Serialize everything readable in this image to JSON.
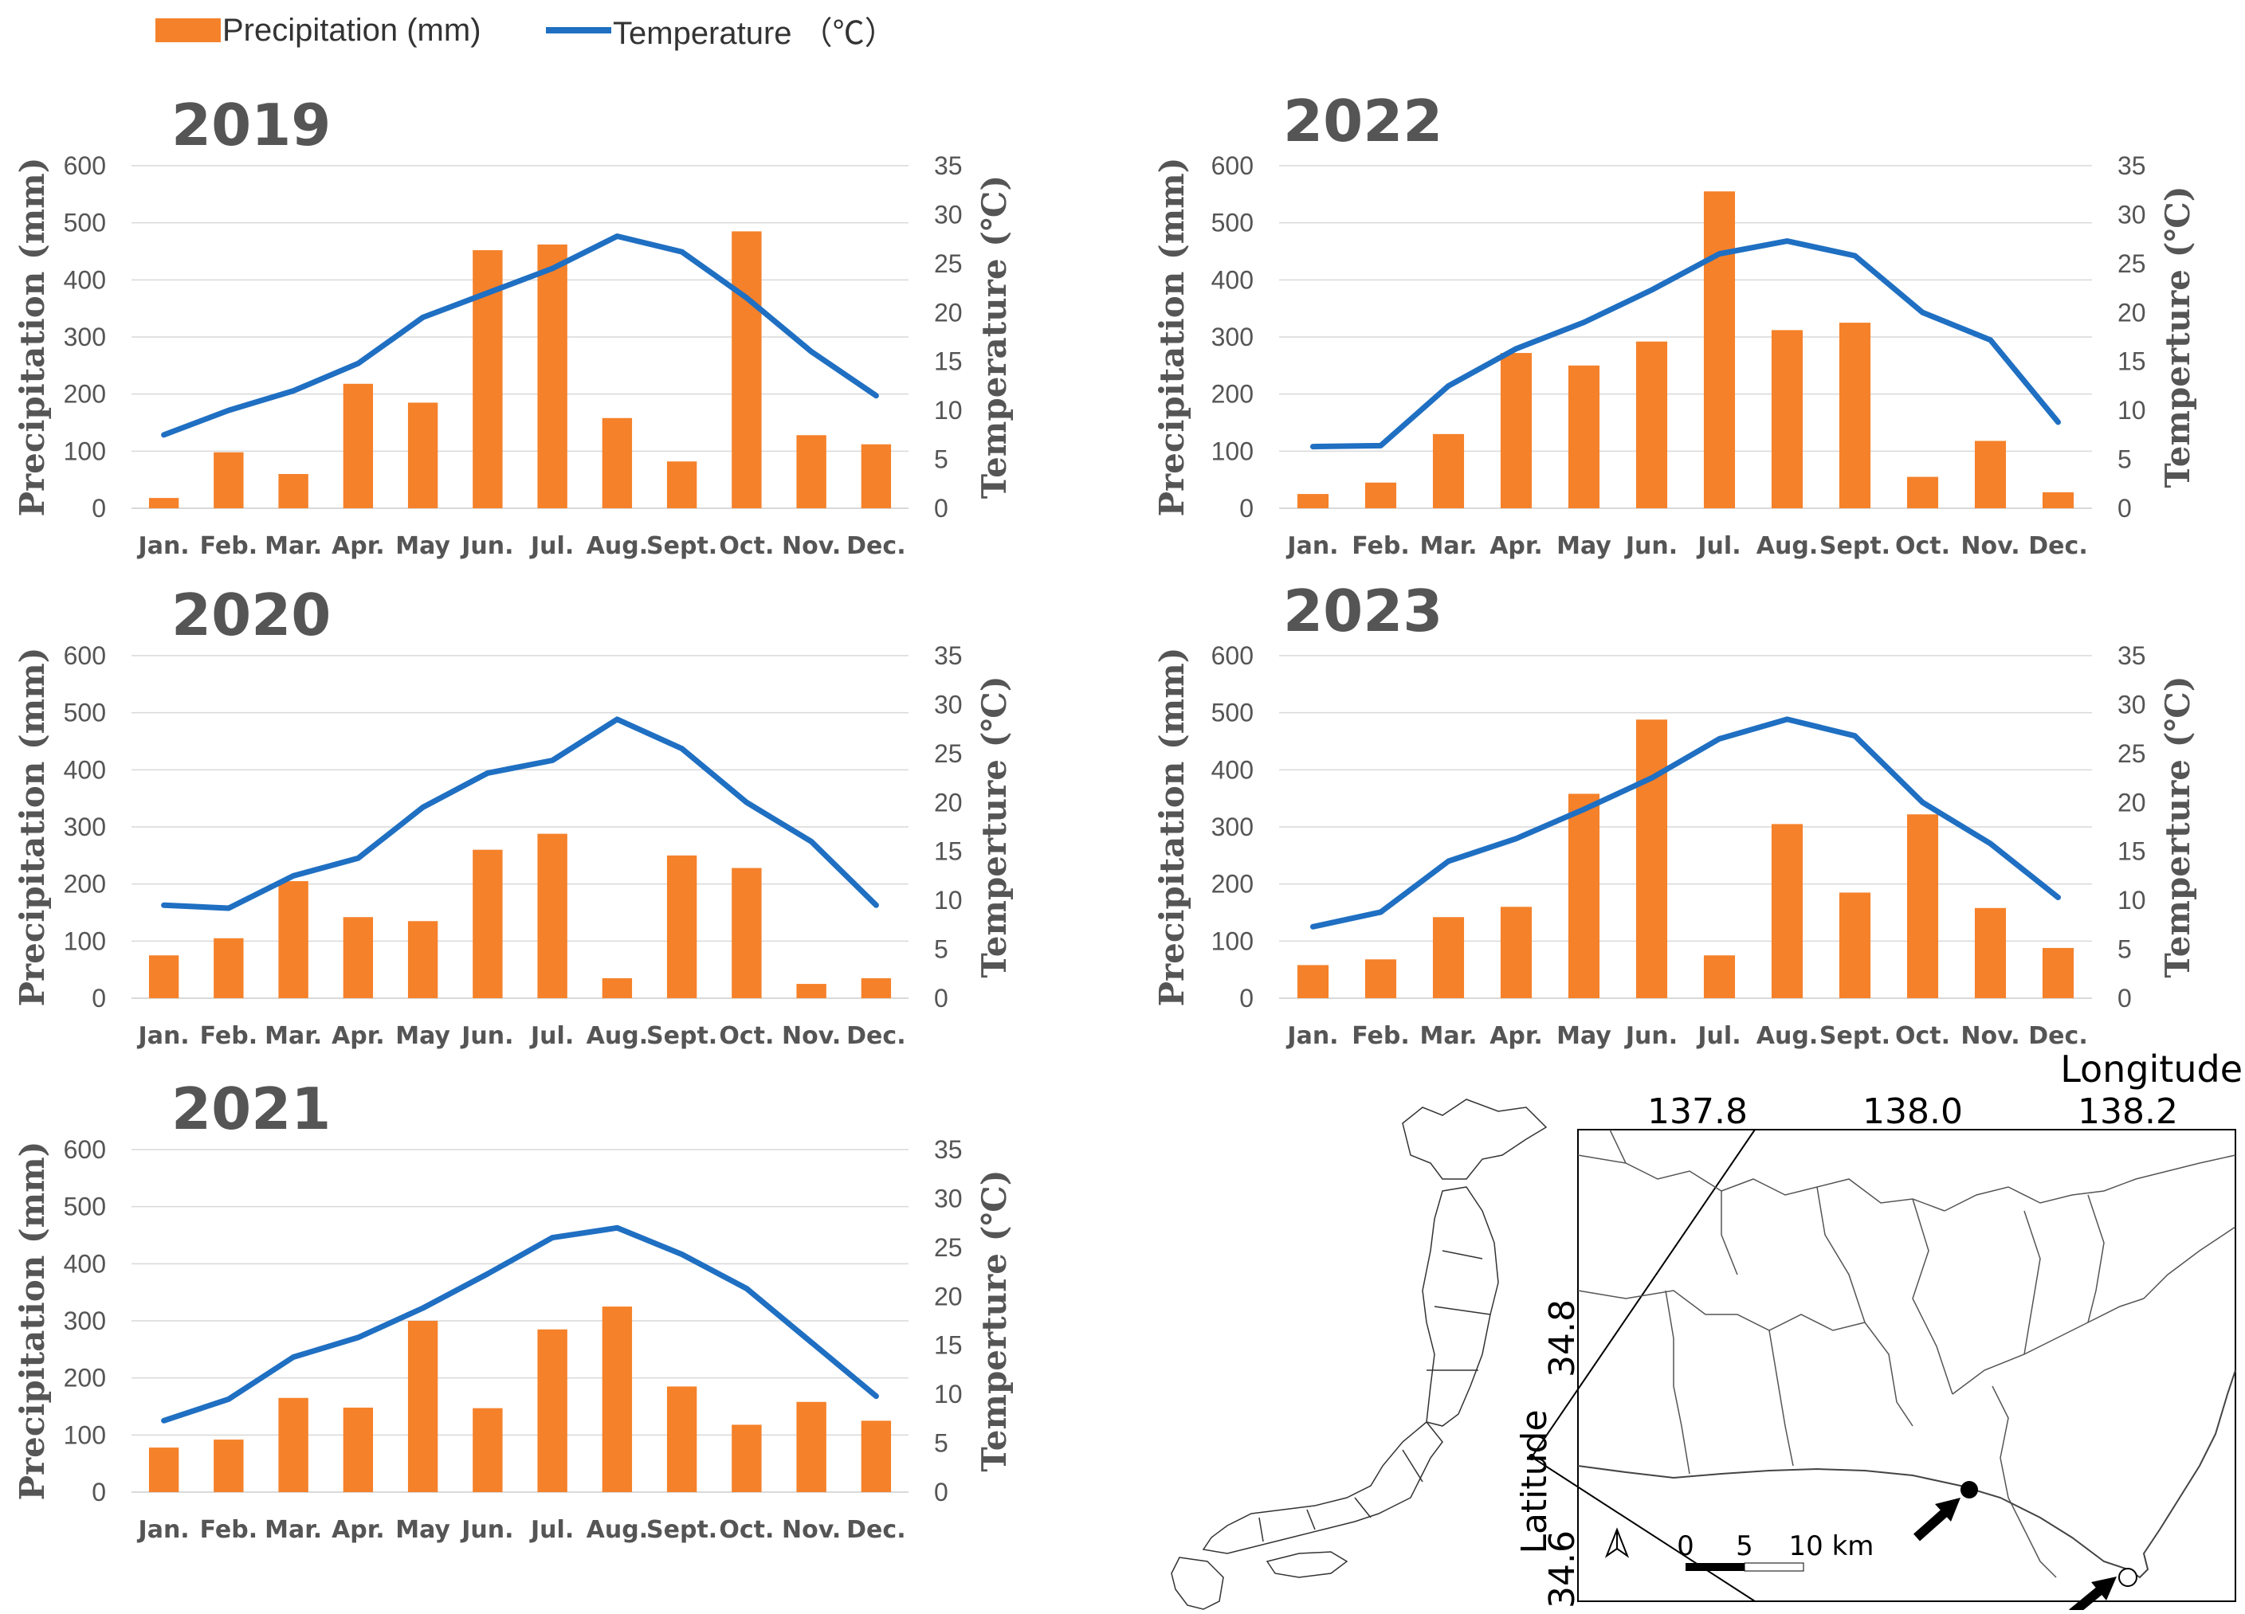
{
  "legend": {
    "precipitation_label": "Precipitation (mm)",
    "temperature_label": "Temperature （℃）"
  },
  "colors": {
    "bar": "#F5812A",
    "line": "#1F6FC2",
    "grid": "#D9D9D9",
    "text": "#555555"
  },
  "chart_data": [
    {
      "type": "bar+line",
      "title": "2019",
      "categories": [
        "Jan.",
        "Feb.",
        "Mar.",
        "Apr.",
        "May",
        "Jun.",
        "Jul.",
        "Aug.",
        "Sept.",
        "Oct.",
        "Nov.",
        "Dec."
      ],
      "series": [
        {
          "name": "Precipitation (mm)",
          "type": "bar",
          "axis": "left",
          "values": [
            18,
            98,
            60,
            218,
            185,
            452,
            462,
            158,
            82,
            485,
            128,
            112
          ]
        },
        {
          "name": "Temperature",
          "type": "line",
          "axis": "right",
          "values": [
            7.5,
            10.0,
            12.0,
            14.8,
            19.5,
            22.0,
            24.5,
            27.8,
            26.2,
            21.5,
            16.0,
            11.5
          ]
        }
      ],
      "ylabel": "Precipitation (mm)",
      "y2label": "Temperature (℃)",
      "ylim": [
        0,
        600
      ],
      "y2lim": [
        0,
        35
      ],
      "yticks": [
        "0",
        "100",
        "200",
        "300",
        "400",
        "500",
        "600"
      ],
      "y2ticks": [
        "0",
        "5",
        "10",
        "15",
        "20",
        "25",
        "30",
        "35"
      ],
      "grid": true
    },
    {
      "type": "bar+line",
      "title": "2020",
      "categories": [
        "Jan.",
        "Feb.",
        "Mar.",
        "Apr.",
        "May",
        "Jun.",
        "Jul.",
        "Aug.",
        "Sept.",
        "Oct.",
        "Nov.",
        "Dec."
      ],
      "series": [
        {
          "name": "Precipitation (mm)",
          "type": "bar",
          "axis": "left",
          "values": [
            75,
            105,
            205,
            142,
            135,
            260,
            288,
            35,
            250,
            228,
            25,
            35
          ]
        },
        {
          "name": "Temperature",
          "type": "line",
          "axis": "right",
          "values": [
            9.5,
            9.2,
            12.5,
            14.3,
            19.5,
            23.0,
            24.3,
            28.5,
            25.5,
            20.0,
            16.0,
            9.5
          ]
        }
      ],
      "ylabel": "Precipitation (mm)",
      "y2label": "Temperture (℃)",
      "ylim": [
        0,
        600
      ],
      "y2lim": [
        0,
        35
      ],
      "yticks": [
        "0",
        "100",
        "200",
        "300",
        "400",
        "500",
        "600"
      ],
      "y2ticks": [
        "0",
        "5",
        "10",
        "15",
        "20",
        "25",
        "30",
        "35"
      ],
      "grid": true
    },
    {
      "type": "bar+line",
      "title": "2021",
      "categories": [
        "Jan.",
        "Feb.",
        "Mar.",
        "Apr.",
        "May",
        "Jun.",
        "Jul.",
        "Aug.",
        "Sept.",
        "Oct.",
        "Nov.",
        "Dec."
      ],
      "series": [
        {
          "name": "Precipitation (mm)",
          "type": "bar",
          "axis": "left",
          "values": [
            78,
            92,
            165,
            148,
            300,
            147,
            285,
            325,
            185,
            118,
            158,
            125
          ]
        },
        {
          "name": "Temperature",
          "type": "line",
          "axis": "right",
          "values": [
            7.3,
            9.5,
            13.8,
            15.8,
            18.8,
            22.3,
            26.0,
            27.0,
            24.3,
            20.8,
            15.3,
            9.8
          ]
        }
      ],
      "ylabel": "Precipitation (mm)",
      "y2label": "Temperture (℃)",
      "ylim": [
        0,
        600
      ],
      "y2lim": [
        0,
        35
      ],
      "yticks": [
        "0",
        "100",
        "200",
        "300",
        "400",
        "500",
        "600"
      ],
      "y2ticks": [
        "0",
        "5",
        "10",
        "15",
        "20",
        "25",
        "30",
        "35"
      ],
      "grid": true
    },
    {
      "type": "bar+line",
      "title": "2022",
      "categories": [
        "Jan.",
        "Feb.",
        "Mar.",
        "Apr.",
        "May",
        "Jun.",
        "Jul.",
        "Aug.",
        "Sept.",
        "Oct.",
        "Nov.",
        "Dec."
      ],
      "series": [
        {
          "name": "Precipitation (mm)",
          "type": "bar",
          "axis": "left",
          "values": [
            25,
            45,
            130,
            272,
            250,
            292,
            555,
            312,
            325,
            55,
            118,
            28
          ]
        },
        {
          "name": "Temperature",
          "type": "line",
          "axis": "right",
          "values": [
            6.3,
            6.4,
            12.5,
            16.3,
            19.0,
            22.3,
            26.0,
            27.3,
            25.8,
            20.0,
            17.2,
            8.8
          ]
        }
      ],
      "ylabel": "Precipitation (mm)",
      "y2label": "Temperture (℃)",
      "ylim": [
        0,
        600
      ],
      "y2lim": [
        0,
        35
      ],
      "yticks": [
        "0",
        "100",
        "200",
        "300",
        "400",
        "500",
        "600"
      ],
      "y2ticks": [
        "0",
        "5",
        "10",
        "15",
        "20",
        "25",
        "30",
        "35"
      ],
      "grid": true
    },
    {
      "type": "bar+line",
      "title": "2023",
      "categories": [
        "Jan.",
        "Feb.",
        "Mar.",
        "Apr.",
        "May",
        "Jun.",
        "Jul.",
        "Aug.",
        "Sept.",
        "Oct.",
        "Nov.",
        "Dec."
      ],
      "series": [
        {
          "name": "Precipitation (mm)",
          "type": "bar",
          "axis": "left",
          "values": [
            58,
            68,
            142,
            160,
            358,
            488,
            75,
            305,
            185,
            322,
            158,
            88
          ]
        },
        {
          "name": "Temperature",
          "type": "line",
          "axis": "right",
          "values": [
            7.3,
            8.8,
            14.0,
            16.3,
            19.3,
            22.5,
            26.5,
            28.5,
            26.8,
            20.0,
            15.8,
            10.3
          ]
        }
      ],
      "ylabel": "Precipitation (mm)",
      "y2label": "Temperture (℃)",
      "ylim": [
        0,
        600
      ],
      "y2lim": [
        0,
        35
      ],
      "yticks": [
        "0",
        "100",
        "200",
        "300",
        "400",
        "500",
        "600"
      ],
      "y2ticks": [
        "0",
        "5",
        "10",
        "15",
        "20",
        "25",
        "30",
        "35"
      ],
      "grid": true
    }
  ],
  "map": {
    "longitude_label": "Longitude",
    "latitude_label": "Latitude",
    "longitude_ticks": [
      "137.8",
      "138.0",
      "138.2"
    ],
    "latitude_ticks": [
      "34.8",
      "34.6"
    ],
    "scale_labels": [
      "0",
      "5",
      "10 km"
    ]
  }
}
